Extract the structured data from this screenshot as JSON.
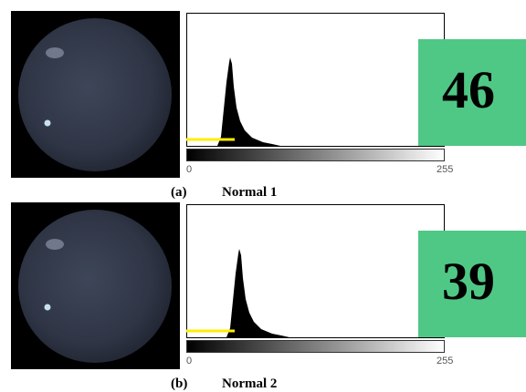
{
  "panels": [
    {
      "label": "(a)",
      "name": "Normal 1",
      "score": "46",
      "axis_min": "0",
      "axis_max": "255"
    },
    {
      "label": "(b)",
      "name": "Normal 2",
      "score": "39",
      "axis_min": "0",
      "axis_max": "255"
    }
  ]
}
